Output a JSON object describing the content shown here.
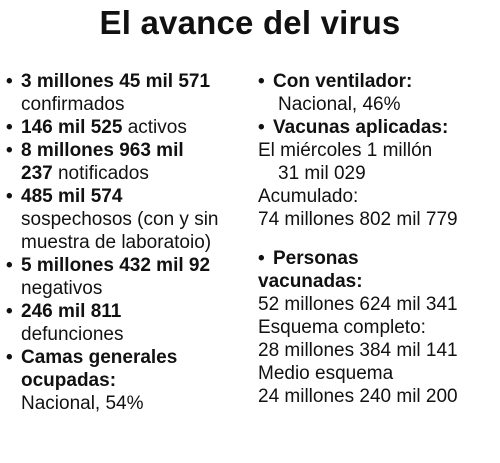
{
  "title": "El avance del virus",
  "bullet": "•",
  "left": {
    "confirmados": {
      "value": "3 millones 45 mil 571",
      "label": "confirmados"
    },
    "activos": {
      "value": "146 mil 525",
      "label": " activos"
    },
    "notificados": {
      "value_line1": "8 millones 963 mil",
      "value_line2": "237",
      "label": " notificados"
    },
    "sospechosos": {
      "value": "485 mil 574",
      "label_line1": "sospechosos (con y sin",
      "label_line2": "muestra de laboratoio)"
    },
    "negativos": {
      "value": "5 millones 432 mil 92",
      "label": "negativos"
    },
    "defunciones": {
      "value": "246 mil 811",
      "label": "defunciones"
    },
    "camas": {
      "label_line1": "Camas generales",
      "label_line2": "ocupadas:",
      "value": "Nacional, 54%"
    }
  },
  "right": {
    "ventilador": {
      "label": "Con ventilador:",
      "value": "Nacional, 46%"
    },
    "vacunas": {
      "label": "Vacunas aplicadas:",
      "miercoles_line1": "El miércoles 1 millón",
      "miercoles_line2": "31 mil 029",
      "acumulado_label": "Acumulado:",
      "acumulado_value": "74 millones 802 mil 779"
    },
    "personas": {
      "label_line1": "Personas",
      "label_line2": "vacunadas:",
      "total": "52 millones 624 mil 341",
      "completo_label": "Esquema completo:",
      "completo_value": "28 millones 384 mil 141",
      "medio_label": "Medio esquema",
      "medio_value": "24 millones 240 mil 200"
    }
  }
}
